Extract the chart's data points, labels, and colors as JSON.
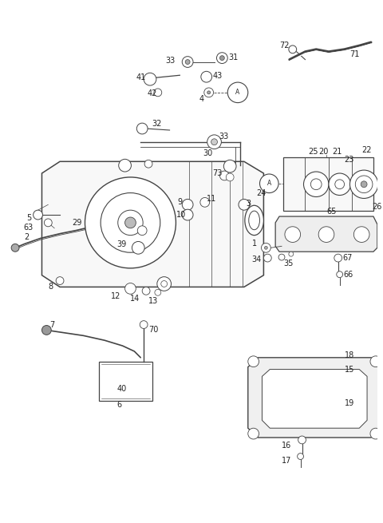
{
  "bg_color": "#ffffff",
  "lc": "#444444",
  "tc": "#222222",
  "figsize": [
    4.8,
    6.55
  ],
  "dpi": 100
}
